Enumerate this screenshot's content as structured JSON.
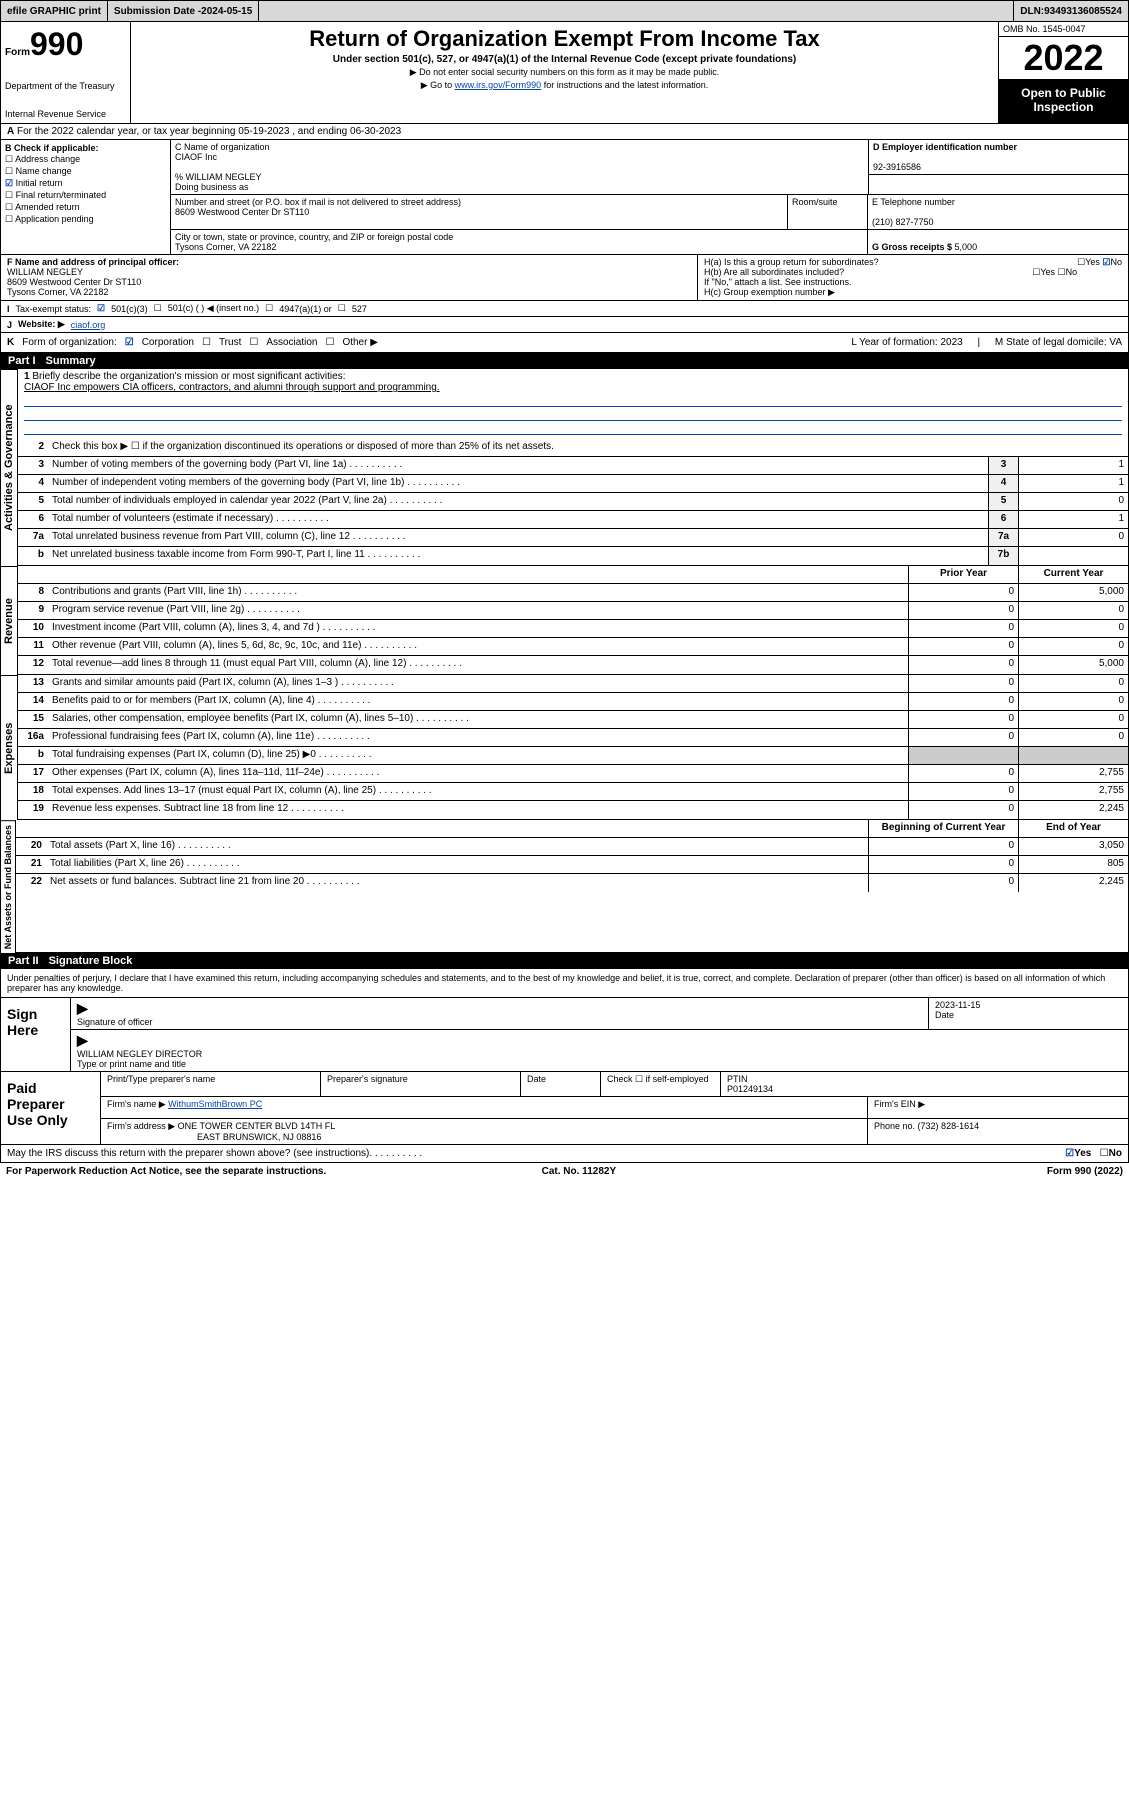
{
  "topbar": {
    "efile": "efile GRAPHIC print",
    "subdate_label": "Submission Date - ",
    "subdate": "2024-05-15",
    "dln_label": "DLN: ",
    "dln": "93493136085524"
  },
  "header": {
    "form_word": "Form",
    "form_num": "990",
    "dept": "Department of the Treasury",
    "irs": "Internal Revenue Service",
    "title": "Return of Organization Exempt From Income Tax",
    "subtitle": "Under section 501(c), 527, or 4947(a)(1) of the Internal Revenue Code (except private foundations)",
    "note1": "▶ Do not enter social security numbers on this form as it may be made public.",
    "note2_pre": "▶ Go to ",
    "note2_link": "www.irs.gov/Form990",
    "note2_post": " for instructions and the latest information.",
    "omb": "OMB No. 1545-0047",
    "year": "2022",
    "otp": "Open to Public Inspection"
  },
  "rowA": {
    "text": "For the 2022 calendar year, or tax year beginning 05-19-2023   , and ending 06-30-2023",
    "label": "A"
  },
  "boxB": {
    "label": "B Check if applicable:",
    "items": [
      "Address change",
      "Name change",
      "Initial return",
      "Final return/terminated",
      "Amended return",
      "Application pending"
    ],
    "checked": [
      false,
      false,
      true,
      false,
      false,
      false
    ]
  },
  "boxC": {
    "label": "C Name of organization",
    "org": "CIAOF Inc",
    "care": "% WILLIAM NEGLEY",
    "dba_label": "Doing business as",
    "dba": "",
    "street_label": "Number and street (or P.O. box if mail is not delivered to street address)",
    "street": "8609 Westwood Center Dr ST110",
    "room_label": "Room/suite",
    "room": "",
    "city_label": "City or town, state or province, country, and ZIP or foreign postal code",
    "city": "Tysons Corner, VA  22182"
  },
  "boxD": {
    "label": "D Employer identification number",
    "val": "92-3916586"
  },
  "boxE": {
    "label": "E Telephone number",
    "val": "(210) 827-7750"
  },
  "boxG": {
    "label": "G Gross receipts $ ",
    "val": "5,000"
  },
  "boxF": {
    "label": "F  Name and address of principal officer:",
    "name": "WILLIAM NEGLEY",
    "addr1": "8609 Westwood Center Dr ST110",
    "addr2": "Tysons Corner, VA  22182"
  },
  "boxH": {
    "a": "H(a)  Is this a group return for subordinates?",
    "b": "H(b)  Are all subordinates included?",
    "note": "If \"No,\" attach a list. See instructions.",
    "c": "H(c)  Group exemption number ▶",
    "yes": "Yes",
    "no": "No"
  },
  "rowI": {
    "label": "I",
    "text": "Tax-exempt status:",
    "o1": "501(c)(3)",
    "o2": "501(c) (  ) ◀ (insert no.)",
    "o3": "4947(a)(1) or",
    "o4": "527"
  },
  "rowJ": {
    "label": "J",
    "text": "Website: ▶",
    "val": "ciaof.org"
  },
  "rowK": {
    "label": "K",
    "text": "Form of organization:",
    "o1": "Corporation",
    "o2": "Trust",
    "o3": "Association",
    "o4": "Other ▶",
    "L": "L Year of formation: 2023",
    "M": "M State of legal domicile: VA"
  },
  "part1": {
    "label": "Part I",
    "title": "Summary"
  },
  "mission": {
    "n": "1",
    "label": "Briefly describe the organization's mission or most significant activities:",
    "text": "CIAOF Inc empowers CIA officers, contractors, and alumni through support and programming."
  },
  "vtabs": {
    "gov": "Activities & Governance",
    "rev": "Revenue",
    "exp": "Expenses",
    "net": "Net Assets or Fund Balances"
  },
  "gov": [
    {
      "n": "2",
      "t": "Check this box ▶ ☐  if the organization discontinued its operations or disposed of more than 25% of its net assets."
    },
    {
      "n": "3",
      "t": "Number of voting members of the governing body (Part VI, line 1a)",
      "b": "3",
      "v": "1"
    },
    {
      "n": "4",
      "t": "Number of independent voting members of the governing body (Part VI, line 1b)",
      "b": "4",
      "v": "1"
    },
    {
      "n": "5",
      "t": "Total number of individuals employed in calendar year 2022 (Part V, line 2a)",
      "b": "5",
      "v": "0"
    },
    {
      "n": "6",
      "t": "Total number of volunteers (estimate if necessary)",
      "b": "6",
      "v": "1"
    },
    {
      "n": "7a",
      "t": "Total unrelated business revenue from Part VIII, column (C), line 12",
      "b": "7a",
      "v": "0"
    },
    {
      "n": "b",
      "t": "Net unrelated business taxable income from Form 990-T, Part I, line 11",
      "b": "7b",
      "v": ""
    }
  ],
  "twocol": {
    "prior": "Prior Year",
    "curr": "Current Year"
  },
  "rev": [
    {
      "n": "8",
      "t": "Contributions and grants (Part VIII, line 1h)",
      "p": "0",
      "c": "5,000"
    },
    {
      "n": "9",
      "t": "Program service revenue (Part VIII, line 2g)",
      "p": "0",
      "c": "0"
    },
    {
      "n": "10",
      "t": "Investment income (Part VIII, column (A), lines 3, 4, and 7d )",
      "p": "0",
      "c": "0"
    },
    {
      "n": "11",
      "t": "Other revenue (Part VIII, column (A), lines 5, 6d, 8c, 9c, 10c, and 11e)",
      "p": "0",
      "c": "0"
    },
    {
      "n": "12",
      "t": "Total revenue—add lines 8 through 11 (must equal Part VIII, column (A), line 12)",
      "p": "0",
      "c": "5,000"
    }
  ],
  "exp": [
    {
      "n": "13",
      "t": "Grants and similar amounts paid (Part IX, column (A), lines 1–3 )",
      "p": "0",
      "c": "0"
    },
    {
      "n": "14",
      "t": "Benefits paid to or for members (Part IX, column (A), line 4)",
      "p": "0",
      "c": "0"
    },
    {
      "n": "15",
      "t": "Salaries, other compensation, employee benefits (Part IX, column (A), lines 5–10)",
      "p": "0",
      "c": "0"
    },
    {
      "n": "16a",
      "t": "Professional fundraising fees (Part IX, column (A), line 11e)",
      "p": "0",
      "c": "0"
    },
    {
      "n": "b",
      "t": "Total fundraising expenses (Part IX, column (D), line 25) ▶0",
      "shade": true
    },
    {
      "n": "17",
      "t": "Other expenses (Part IX, column (A), lines 11a–11d, 11f–24e)",
      "p": "0",
      "c": "2,755"
    },
    {
      "n": "18",
      "t": "Total expenses. Add lines 13–17 (must equal Part IX, column (A), line 25)",
      "p": "0",
      "c": "2,755"
    },
    {
      "n": "19",
      "t": "Revenue less expenses. Subtract line 18 from line 12",
      "p": "0",
      "c": "2,245"
    }
  ],
  "netcol": {
    "beg": "Beginning of Current Year",
    "end": "End of Year"
  },
  "net": [
    {
      "n": "20",
      "t": "Total assets (Part X, line 16)",
      "p": "0",
      "c": "3,050"
    },
    {
      "n": "21",
      "t": "Total liabilities (Part X, line 26)",
      "p": "0",
      "c": "805"
    },
    {
      "n": "22",
      "t": "Net assets or fund balances. Subtract line 21 from line 20",
      "p": "0",
      "c": "2,245"
    }
  ],
  "part2": {
    "label": "Part II",
    "title": "Signature Block"
  },
  "sigdecl": "Under penalties of perjury, I declare that I have examined this return, including accompanying schedules and statements, and to the best of my knowledge and belief, it is true, correct, and complete. Declaration of preparer (other than officer) is based on all information of which preparer has any knowledge.",
  "sign": {
    "label": "Sign Here",
    "sig": "Signature of officer",
    "date": "Date",
    "dateval": "2023-11-15",
    "name": "WILLIAM NEGLEY  DIRECTOR",
    "nametype": "Type or print name and title"
  },
  "paid": {
    "label": "Paid Preparer Use Only",
    "h1": "Print/Type preparer's name",
    "h2": "Preparer's signature",
    "h3": "Date",
    "h4_pre": "Check ☐ if self-employed",
    "h5": "PTIN",
    "ptin": "P01249134",
    "firm_label": "Firm's name    ▶",
    "firm": "WithumSmithBrown PC",
    "ein_label": "Firm's EIN ▶",
    "ein": "",
    "addr_label": "Firm's address ▶",
    "addr1": "ONE TOWER CENTER BLVD 14TH FL",
    "addr2": "EAST BRUNSWICK, NJ  08816",
    "phone_label": "Phone no. ",
    "phone": "(732) 828-1614"
  },
  "ftr": {
    "q": "May the IRS discuss this return with the preparer shown above? (see instructions)",
    "yes": "Yes",
    "no": "No"
  },
  "ftr2": {
    "l": "For Paperwork Reduction Act Notice, see the separate instructions.",
    "c": "Cat. No. 11282Y",
    "r": "Form 990 (2022)"
  }
}
